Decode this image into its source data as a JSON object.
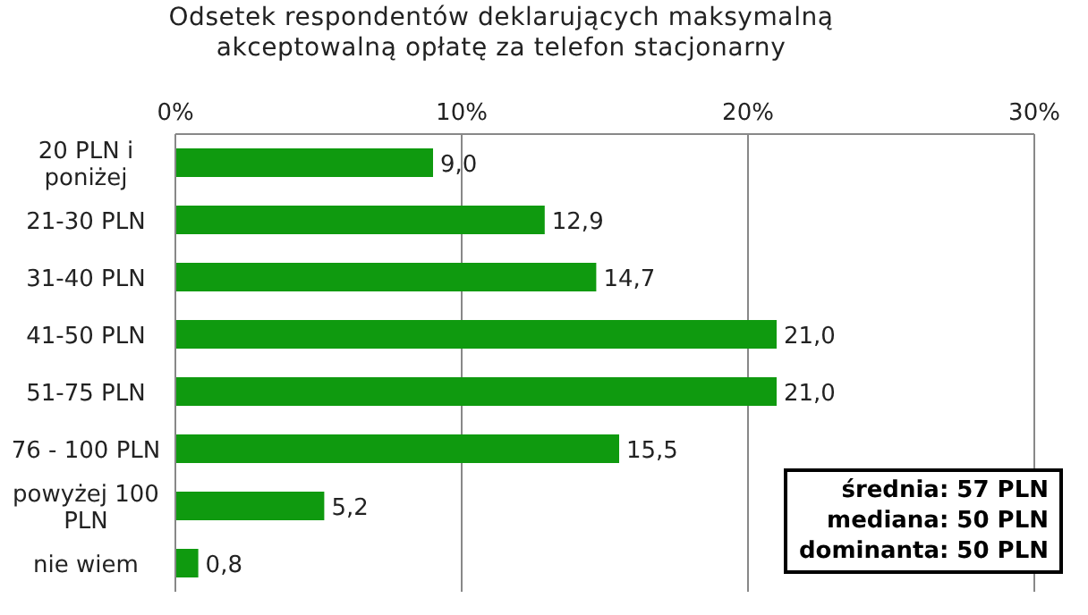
{
  "chart_data": {
    "type": "bar",
    "orientation": "horizontal",
    "title": "Odsetek respondentów deklarujących maksymalną akceptowalną opłatę za telefon stacjonarny",
    "categories": [
      "20 PLN i poniżej",
      "21-30 PLN",
      "31-40 PLN",
      "41-50 PLN",
      "51-75 PLN",
      "76 - 100 PLN",
      "powyżej 100 PLN",
      "nie wiem"
    ],
    "values": [
      9.0,
      12.9,
      14.7,
      21.0,
      21.0,
      15.5,
      5.2,
      0.8
    ],
    "value_labels": [
      "9,0",
      "12,9",
      "14,7",
      "21,0",
      "21,0",
      "15,5",
      "5,2",
      "0,8"
    ],
    "color": "#0f9a0f",
    "xlim": [
      0,
      30
    ],
    "xticks": [
      {
        "value": 0,
        "label": "0%"
      },
      {
        "value": 10,
        "label": "10%"
      },
      {
        "value": 20,
        "label": "20%"
      },
      {
        "value": 30,
        "label": "30%"
      }
    ],
    "grid": "x",
    "annotations": [
      "średnia: 57 PLN",
      "mediana: 50 PLN",
      "dominanta: 50 PLN"
    ]
  }
}
